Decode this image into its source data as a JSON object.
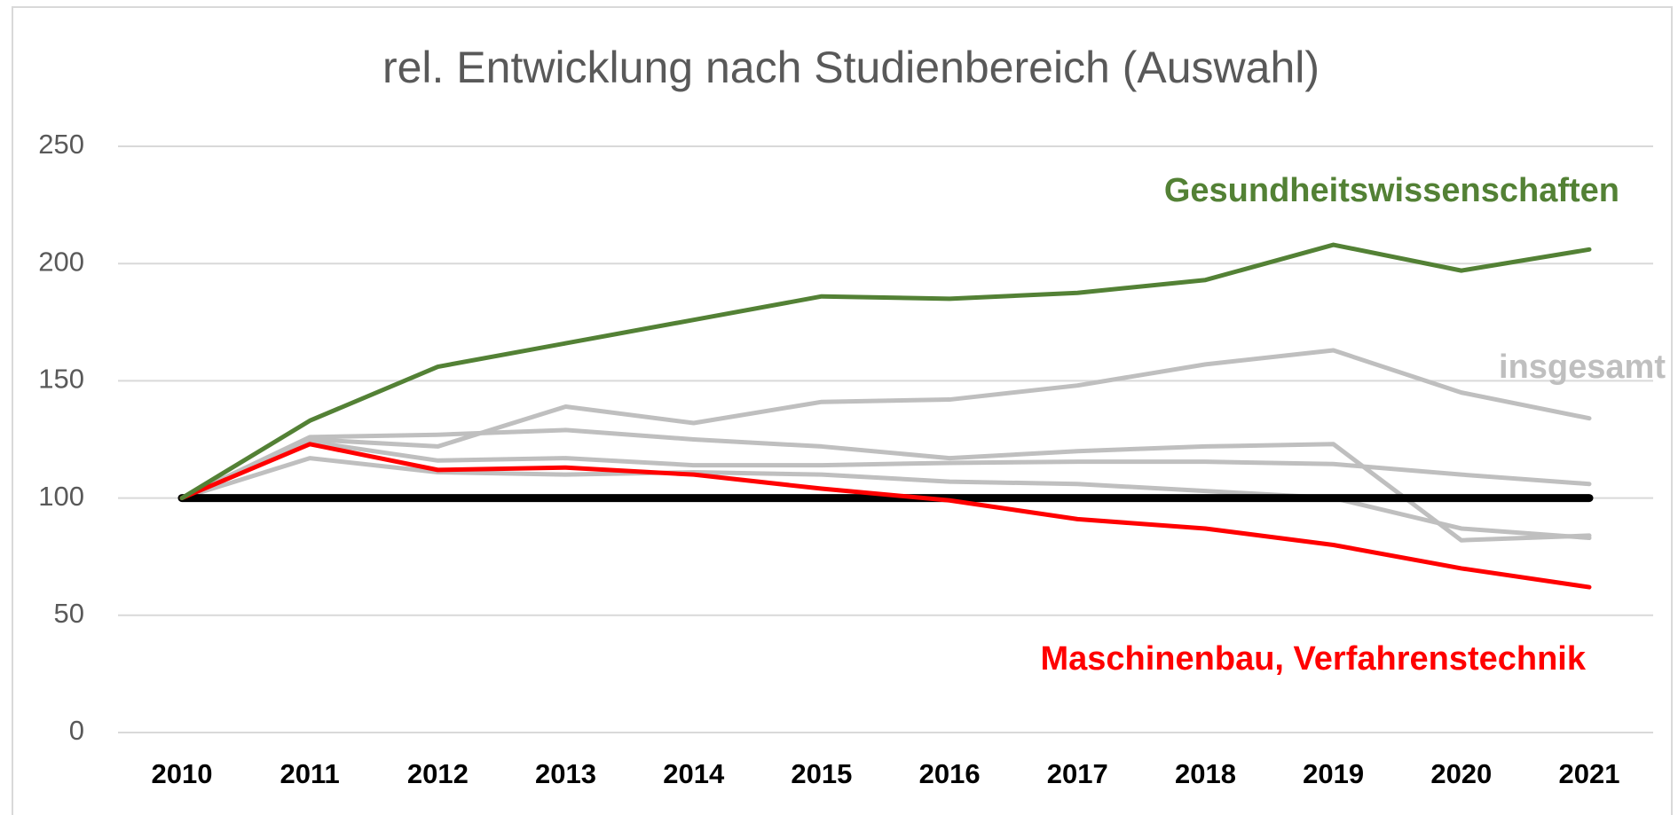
{
  "chart_data": {
    "type": "line",
    "title": "rel. Entwicklung nach Studienbereich (Auswahl)",
    "categories": [
      "2010",
      "2011",
      "2012",
      "2013",
      "2014",
      "2015",
      "2016",
      "2017",
      "2018",
      "2019",
      "2020",
      "2021"
    ],
    "ylim": [
      0,
      250
    ],
    "yticks": [
      0,
      50,
      100,
      150,
      200,
      250
    ],
    "grid": true,
    "series": [
      {
        "color": "#bfbfbf",
        "values": [
          100,
          126,
          127,
          129,
          125,
          122,
          117,
          120,
          122,
          123,
          82,
          84
        ]
      },
      {
        "color": "#bfbfbf",
        "values": [
          100,
          124,
          116,
          117,
          114,
          114,
          115,
          115.5,
          115.5,
          114.5,
          110,
          106
        ]
      },
      {
        "color": "#bfbfbf",
        "values": [
          100,
          117,
          111,
          110,
          111,
          110,
          107,
          106,
          103,
          100,
          87,
          83
        ]
      },
      {
        "name": "insgesamt",
        "color": "#bfbfbf",
        "values": [
          100,
          125,
          122,
          139,
          132,
          141,
          142,
          148,
          157,
          163,
          145,
          134
        ]
      },
      {
        "color": "#000000",
        "values": [
          100,
          100,
          100,
          100,
          100,
          100,
          100,
          100,
          100,
          100,
          100,
          100
        ]
      },
      {
        "name": "Maschinenbau, Verfahrenstechnik",
        "color": "#ff0000",
        "values": [
          100,
          123,
          112,
          113,
          110,
          104,
          99,
          91,
          87,
          80,
          70,
          62
        ]
      },
      {
        "name": "Gesundheitswissenschaften",
        "color": "#538135",
        "values": [
          100,
          133,
          156,
          166,
          176,
          186,
          185,
          187.5,
          193,
          208,
          197,
          206
        ]
      }
    ]
  }
}
